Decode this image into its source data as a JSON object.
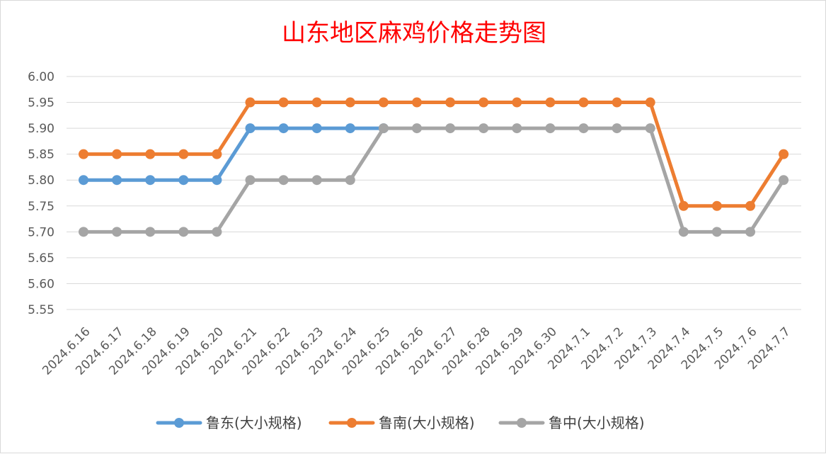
{
  "chart_data": {
    "type": "line",
    "title": "山东地区麻鸡价格走势图",
    "xlabel": "",
    "ylabel": "",
    "ylim": [
      5.55,
      6.0
    ],
    "y_tick_step": 0.05,
    "y_tick_decimals": 2,
    "grid": true,
    "legend_position": "bottom",
    "categories": [
      "2024.6.16",
      "2024.6.17",
      "2024.6.18",
      "2024.6.19",
      "2024.6.20",
      "2024.6.21",
      "2024.6.22",
      "2024.6.23",
      "2024.6.24",
      "2024.6.25",
      "2024.6.26",
      "2024.6.27",
      "2024.6.28",
      "2024.6.29",
      "2024.6.30",
      "2024.7.1",
      "2024.7.2",
      "2024.7.3",
      "2024.7.4",
      "2024.7.5",
      "2024.7.6",
      "2024.7.7"
    ],
    "series": [
      {
        "name": "鲁东(大小规格)",
        "color": "#5b9bd5",
        "values": [
          5.8,
          5.8,
          5.8,
          5.8,
          5.8,
          5.9,
          5.9,
          5.9,
          5.9,
          5.9,
          null,
          null,
          null,
          null,
          null,
          null,
          null,
          null,
          null,
          null,
          null,
          null
        ]
      },
      {
        "name": "鲁南(大小规格)",
        "color": "#ed7d31",
        "values": [
          5.85,
          5.85,
          5.85,
          5.85,
          5.85,
          5.95,
          5.95,
          5.95,
          5.95,
          5.95,
          5.95,
          5.95,
          5.95,
          5.95,
          5.95,
          5.95,
          5.95,
          5.95,
          5.75,
          5.75,
          5.75,
          5.85
        ]
      },
      {
        "name": "鲁中(大小规格)",
        "color": "#a5a5a5",
        "values": [
          5.7,
          5.7,
          5.7,
          5.7,
          5.7,
          5.8,
          5.8,
          5.8,
          5.8,
          5.9,
          5.9,
          5.9,
          5.9,
          5.9,
          5.9,
          5.9,
          5.9,
          5.9,
          5.7,
          5.7,
          5.7,
          5.8
        ]
      }
    ]
  },
  "colors": {
    "title": "#ff0000",
    "gridline": "#d9d9d9",
    "axis_text": "#595959"
  }
}
